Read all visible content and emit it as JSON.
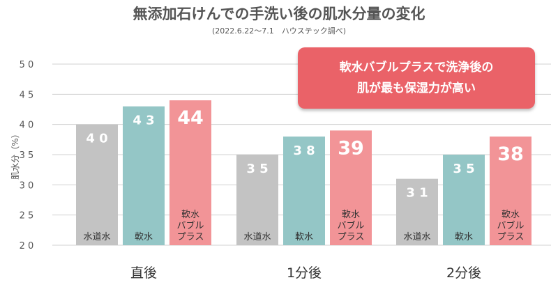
{
  "chart_data": {
    "type": "bar",
    "title": "無添加石けんでの手洗い後の肌水分量の変化",
    "subtitle": "(2022.6.22〜7.1　ハウステック調べ)",
    "ylabel": "肌水分（%）",
    "ylim": [
      20,
      50
    ],
    "yticks": [
      "2 0",
      "2 5",
      "3 0",
      "3 5",
      "4 0",
      "4 5",
      "5 0"
    ],
    "categories": [
      "直後",
      "1分後",
      "2分後"
    ],
    "series": [
      {
        "name": "水道水",
        "values": [
          40,
          35,
          31
        ],
        "labels": [
          "4 0",
          "3 5",
          "3 1"
        ],
        "color": "#c3c3c3"
      },
      {
        "name": "軟水",
        "values": [
          43,
          38,
          35
        ],
        "labels": [
          "4 3",
          "3 8",
          "3 5"
        ],
        "color": "#94c6c6"
      },
      {
        "name": "軟水バブルプラス",
        "name_lines": [
          "軟水",
          "バブル",
          "プラス"
        ],
        "values": [
          44,
          39,
          38
        ],
        "labels": [
          "44",
          "39",
          "38"
        ],
        "color": "#f29497"
      }
    ],
    "grid": true
  },
  "callout": {
    "line1": "軟水バブルプラスで洗浄後の",
    "line2": "肌が最も保湿力が高い"
  }
}
